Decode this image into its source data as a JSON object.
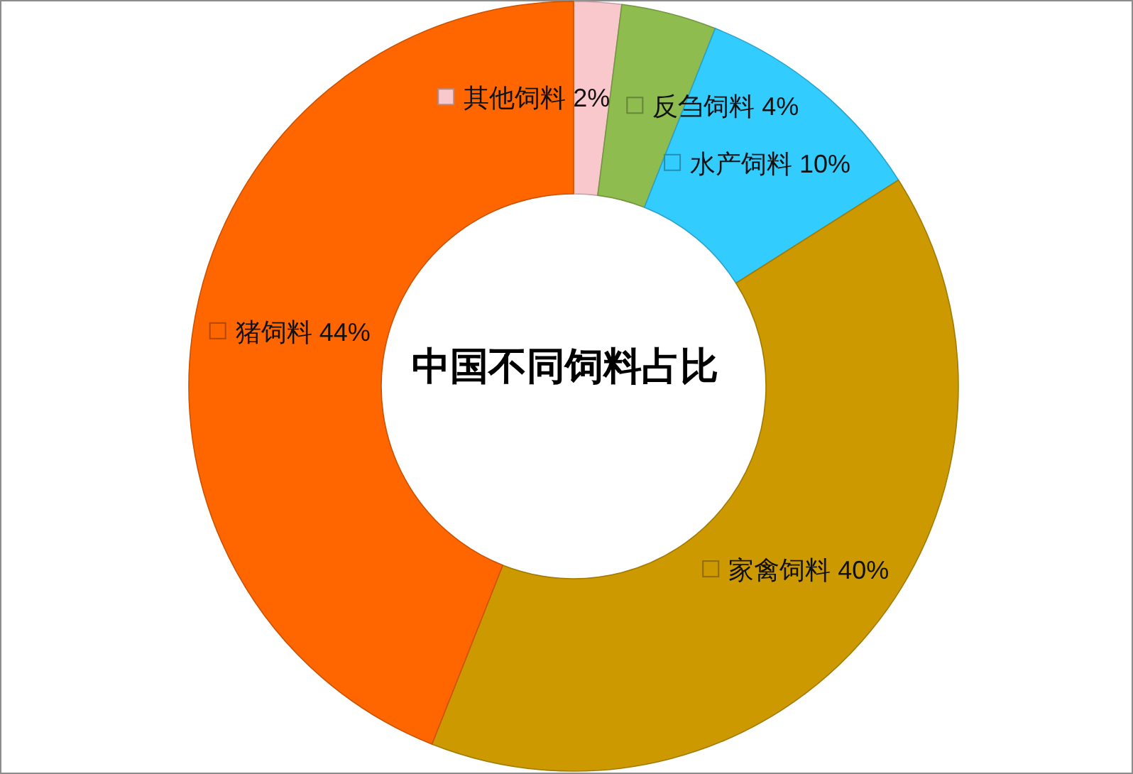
{
  "chart_data": {
    "type": "donut",
    "title": "中国不同饲料占比",
    "categories": [
      "其他饲料",
      "反刍饲料",
      "水产饲料",
      "家禽饲料",
      "猪饲料"
    ],
    "values": [
      2,
      4,
      10,
      40,
      44
    ],
    "colors": [
      "#f9c8cc",
      "#8fbc4f",
      "#33ccff",
      "#cc9900",
      "#ff6600"
    ],
    "value_labels": [
      "2%",
      "4%",
      "10%",
      "40%",
      "44%"
    ],
    "legend": "center"
  }
}
